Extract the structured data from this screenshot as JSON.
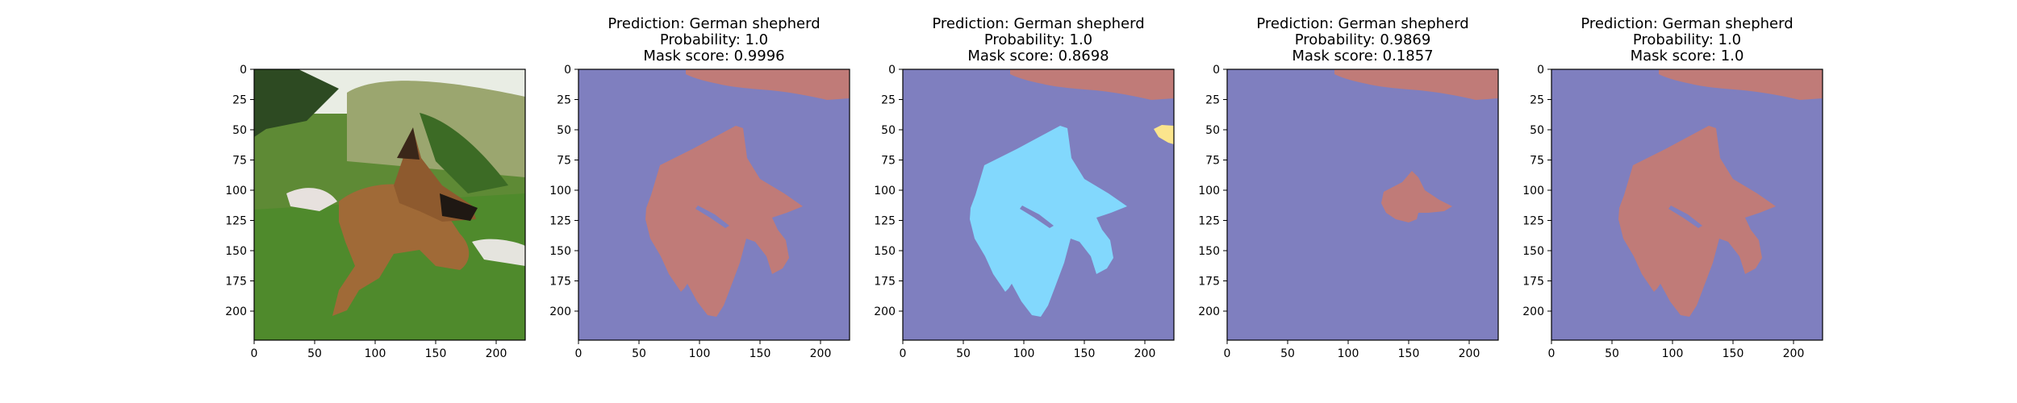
{
  "chart_data": [
    {
      "type": "image",
      "title_lines": [],
      "xticks": [
        0,
        50,
        100,
        150,
        200
      ],
      "yticks": [
        0,
        25,
        50,
        75,
        100,
        125,
        150,
        175,
        200
      ],
      "xlim": [
        0,
        224
      ],
      "ylim": [
        224,
        0
      ],
      "content": "photo of a German shepherd lying in grass"
    },
    {
      "type": "heatmap",
      "title_lines": [
        "Prediction: German shepherd",
        "Probability: 1.0",
        "Mask score: 0.9996"
      ],
      "xticks": [
        0,
        50,
        100,
        150,
        200
      ],
      "yticks": [
        0,
        25,
        50,
        75,
        100,
        125,
        150,
        175,
        200
      ],
      "xlim": [
        0,
        224
      ],
      "ylim": [
        224,
        0
      ],
      "mask": "full_dog",
      "mask_color": "#c07b78"
    },
    {
      "type": "heatmap",
      "title_lines": [
        "Prediction: German shepherd",
        "Probability: 1.0",
        "Mask score: 0.8698"
      ],
      "xticks": [
        0,
        50,
        100,
        150,
        200
      ],
      "yticks": [
        0,
        25,
        50,
        75,
        100,
        125,
        150,
        175,
        200
      ],
      "xlim": [
        0,
        224
      ],
      "ylim": [
        224,
        0
      ],
      "mask": "full_dog",
      "mask_color": "#82d8fd",
      "extra_blob_color": "#fbe58d"
    },
    {
      "type": "heatmap",
      "title_lines": [
        "Prediction: German shepherd",
        "Probability: 0.9869",
        "Mask score: 0.1857"
      ],
      "xticks": [
        0,
        50,
        100,
        150,
        200
      ],
      "yticks": [
        0,
        25,
        50,
        75,
        100,
        125,
        150,
        175,
        200
      ],
      "xlim": [
        0,
        224
      ],
      "ylim": [
        224,
        0
      ],
      "mask": "small_head",
      "mask_color": "#c07b78"
    },
    {
      "type": "heatmap",
      "title_lines": [
        "Prediction: German shepherd",
        "Probability: 1.0",
        "Mask score: 1.0"
      ],
      "xticks": [
        0,
        50,
        100,
        150,
        200
      ],
      "yticks": [
        0,
        25,
        50,
        75,
        100,
        125,
        150,
        175,
        200
      ],
      "xlim": [
        0,
        224
      ],
      "ylim": [
        224,
        0
      ],
      "mask": "full_dog",
      "mask_color": "#c07b78"
    }
  ],
  "colors": {
    "background_class": "#7f7fbf",
    "top_region": "#c07b78"
  }
}
